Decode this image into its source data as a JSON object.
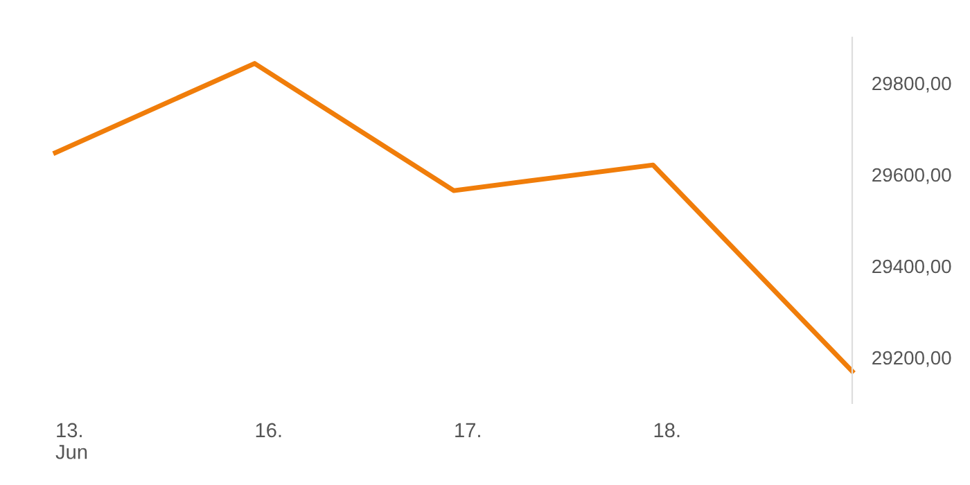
{
  "chart_data": {
    "type": "line",
    "categories": [
      "13.\nJun",
      "16.",
      "17.",
      "18.",
      null
    ],
    "series": [
      {
        "color": "#f07d0a",
        "values": [
          29648,
          29843,
          29565,
          29621,
          29170
        ]
      }
    ],
    "ylim": [
      29100,
      29900
    ],
    "yticks": [
      {
        "value": 29200,
        "label": "29200,00"
      },
      {
        "value": 29400,
        "label": "29400,00"
      },
      {
        "value": 29600,
        "label": "29600,00"
      },
      {
        "value": 29800,
        "label": "29800,00"
      }
    ],
    "grid": false,
    "legend": false,
    "marker": "none",
    "line_style": "solid"
  }
}
